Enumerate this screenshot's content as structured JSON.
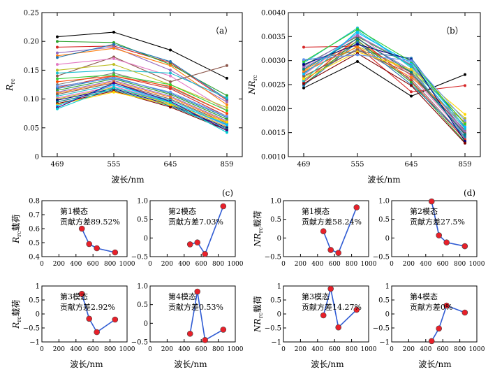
{
  "figure": {
    "panel_a_label": "（a）",
    "panel_b_label": "（b）",
    "panel_c_label": "(c)",
    "panel_d_label": "(d)",
    "xlabel_top": "波长/nm",
    "xlabel_bottom": "波长/nm"
  },
  "chart_data": [
    {
      "id": "a",
      "type": "line",
      "ylabel": "R_rc",
      "categories": [
        "469",
        "555",
        "645",
        "859"
      ],
      "ylim": [
        0,
        0.25
      ],
      "yticks": [
        "0",
        "0.05",
        "0.10",
        "0.15",
        "0.20",
        "0.25"
      ],
      "series": [
        {
          "color": "#000000",
          "values": [
            0.208,
            0.216,
            0.185,
            0.136
          ]
        },
        {
          "color": "#d62728",
          "values": [
            0.19,
            0.192,
            0.163,
            0.098
          ]
        },
        {
          "color": "#2ca02c",
          "values": [
            0.2,
            0.198,
            0.16,
            0.106
          ]
        },
        {
          "color": "#9467bd",
          "values": [
            0.18,
            0.19,
            0.15,
            0.095
          ]
        },
        {
          "color": "#ff7f0e",
          "values": [
            0.175,
            0.188,
            0.158,
            0.09
          ]
        },
        {
          "color": "#1f77b4",
          "values": [
            0.172,
            0.195,
            0.165,
            0.1
          ]
        },
        {
          "color": "#8c564b",
          "values": [
            0.14,
            0.173,
            0.13,
            0.158
          ]
        },
        {
          "color": "#e377c2",
          "values": [
            0.16,
            0.17,
            0.14,
            0.08
          ]
        },
        {
          "color": "#17becf",
          "values": [
            0.145,
            0.15,
            0.145,
            0.102
          ]
        },
        {
          "color": "#bcbd22",
          "values": [
            0.15,
            0.16,
            0.125,
            0.085
          ]
        },
        {
          "color": "#7f7f7f",
          "values": [
            0.125,
            0.145,
            0.12,
            0.075
          ]
        },
        {
          "color": "#d62728",
          "values": [
            0.12,
            0.14,
            0.118,
            0.07
          ]
        },
        {
          "color": "#1f77b4",
          "values": [
            0.118,
            0.138,
            0.11,
            0.068
          ]
        },
        {
          "color": "#2ca02c",
          "values": [
            0.115,
            0.135,
            0.108,
            0.065
          ]
        },
        {
          "color": "#9467bd",
          "values": [
            0.112,
            0.132,
            0.105,
            0.062
          ]
        },
        {
          "color": "#ff7f0e",
          "values": [
            0.11,
            0.13,
            0.103,
            0.06
          ]
        },
        {
          "color": "#8c564b",
          "values": [
            0.108,
            0.128,
            0.1,
            0.058
          ]
        },
        {
          "color": "#17becf",
          "values": [
            0.105,
            0.125,
            0.098,
            0.056
          ]
        },
        {
          "color": "#e377c2",
          "values": [
            0.102,
            0.122,
            0.095,
            0.054
          ]
        },
        {
          "color": "#bcbd22",
          "values": [
            0.1,
            0.12,
            0.092,
            0.052
          ]
        },
        {
          "color": "#000080",
          "values": [
            0.098,
            0.118,
            0.09,
            0.05
          ]
        },
        {
          "color": "#008080",
          "values": [
            0.095,
            0.116,
            0.088,
            0.048
          ]
        },
        {
          "color": "#800000",
          "values": [
            0.092,
            0.114,
            0.086,
            0.046
          ]
        },
        {
          "color": "#ffd700",
          "values": [
            0.09,
            0.112,
            0.09,
            0.06
          ]
        },
        {
          "color": "#00bfff",
          "values": [
            0.088,
            0.125,
            0.095,
            0.055
          ]
        },
        {
          "color": "#4b0082",
          "values": [
            0.085,
            0.128,
            0.096,
            0.045
          ]
        },
        {
          "color": "#00ced1",
          "values": [
            0.083,
            0.12,
            0.094,
            0.042
          ]
        },
        {
          "color": "#ff4500",
          "values": [
            0.13,
            0.14,
            0.122,
            0.075
          ]
        },
        {
          "color": "#32cd32",
          "values": [
            0.135,
            0.142,
            0.125,
            0.08
          ]
        },
        {
          "color": "#6495ed",
          "values": [
            0.122,
            0.136,
            0.112,
            0.07
          ]
        }
      ]
    },
    {
      "id": "b",
      "type": "line",
      "ylabel": "NR_rc",
      "categories": [
        "469",
        "555",
        "645",
        "859"
      ],
      "ylim": [
        0.001,
        0.004
      ],
      "yticks": [
        "0.0010",
        "0.0015",
        "0.0020",
        "0.0025",
        "0.0030",
        "0.0035",
        "0.0040"
      ],
      "series": [
        {
          "color": "#000000",
          "values": [
            0.00243,
            0.00298,
            0.00226,
            0.00271
          ]
        },
        {
          "color": "#d62728",
          "values": [
            0.00328,
            0.0033,
            0.00235,
            0.00248
          ]
        },
        {
          "color": "#2ca02c",
          "values": [
            0.0029,
            0.0035,
            0.0029,
            0.0017
          ]
        },
        {
          "color": "#1f77b4",
          "values": [
            0.003,
            0.0032,
            0.00305,
            0.0016
          ]
        },
        {
          "color": "#9467bd",
          "values": [
            0.00285,
            0.00345,
            0.0028,
            0.0015
          ]
        },
        {
          "color": "#ff7f0e",
          "values": [
            0.0028,
            0.0034,
            0.0027,
            0.00165
          ]
        },
        {
          "color": "#17becf",
          "values": [
            0.00295,
            0.00368,
            0.00285,
            0.0014
          ]
        },
        {
          "color": "#8c564b",
          "values": [
            0.00275,
            0.00335,
            0.00275,
            0.00155
          ]
        },
        {
          "color": "#e377c2",
          "values": [
            0.0027,
            0.00355,
            0.00268,
            0.00145
          ]
        },
        {
          "color": "#bcbd22",
          "values": [
            0.00265,
            0.0033,
            0.00278,
            0.0018
          ]
        },
        {
          "color": "#7f7f7f",
          "values": [
            0.0026,
            0.00325,
            0.00262,
            0.00138
          ]
        },
        {
          "color": "#d62728",
          "values": [
            0.00255,
            0.00348,
            0.00258,
            0.00135
          ]
        },
        {
          "color": "#2ca02c",
          "values": [
            0.0025,
            0.00342,
            0.00255,
            0.0013
          ]
        },
        {
          "color": "#1f77b4",
          "values": [
            0.00248,
            0.00338,
            0.0025,
            0.00142
          ]
        },
        {
          "color": "#9467bd",
          "values": [
            0.00288,
            0.00352,
            0.00292,
            0.00152
          ]
        },
        {
          "color": "#ff7f0e",
          "values": [
            0.00278,
            0.00328,
            0.00265,
            0.00172
          ]
        },
        {
          "color": "#8c564b",
          "values": [
            0.00268,
            0.00322,
            0.00272,
            0.00148
          ]
        },
        {
          "color": "#17becf",
          "values": [
            0.00258,
            0.00362,
            0.00288,
            0.00158
          ]
        },
        {
          "color": "#ffd700",
          "values": [
            0.00262,
            0.00318,
            0.00282,
            0.00188
          ]
        },
        {
          "color": "#00bfff",
          "values": [
            0.00272,
            0.00358,
            0.00295,
            0.00162
          ]
        },
        {
          "color": "#000080",
          "values": [
            0.00292,
            0.00334,
            0.00302,
            0.00132
          ]
        },
        {
          "color": "#008080",
          "values": [
            0.00282,
            0.00346,
            0.00276,
            0.00146
          ]
        },
        {
          "color": "#800000",
          "values": [
            0.00252,
            0.00315,
            0.00248,
            0.00128
          ]
        },
        {
          "color": "#32cd32",
          "values": [
            0.00298,
            0.00365,
            0.00298,
            0.00168
          ]
        },
        {
          "color": "#6495ed",
          "values": [
            0.00302,
            0.00312,
            0.003,
            0.00175
          ]
        }
      ]
    },
    {
      "id": "c1",
      "type": "line",
      "ylabel": "R_rc载荷",
      "annotation": [
        "第1模态",
        "贡献方差89.52%"
      ],
      "xlim": [
        0,
        1000
      ],
      "xticks": [
        "0",
        "200",
        "400",
        "600",
        "800",
        "1000"
      ],
      "ylim": [
        0.4,
        0.8
      ],
      "yticks": [
        "0.4",
        "0.5",
        "0.6",
        "0.7",
        "0.8"
      ],
      "x": [
        469,
        555,
        645,
        859
      ],
      "y": [
        0.6,
        0.49,
        0.46,
        0.43
      ]
    },
    {
      "id": "c2",
      "type": "line",
      "annotation": [
        "第2模态",
        "贡献方差7.03%"
      ],
      "xlim": [
        0,
        1000
      ],
      "xticks": [
        "0",
        "200",
        "400",
        "600",
        "800",
        "1000"
      ],
      "ylim": [
        -0.5,
        1.0
      ],
      "yticks": [
        "−0.5",
        "0",
        "0.5",
        "1.0"
      ],
      "x": [
        469,
        555,
        645,
        859
      ],
      "y": [
        -0.17,
        -0.12,
        -0.43,
        0.85
      ]
    },
    {
      "id": "c3",
      "type": "line",
      "ylabel": "R_rc载荷",
      "annotation": [
        "第3模态",
        "贡献方差2.92%"
      ],
      "xlim": [
        0,
        1000
      ],
      "xticks": [
        "0",
        "200",
        "400",
        "600",
        "800",
        "1000"
      ],
      "ylim": [
        -1,
        1
      ],
      "yticks": [
        "−1",
        "−0.5",
        "0",
        "0.5",
        "1"
      ],
      "x": [
        469,
        555,
        645,
        859
      ],
      "y": [
        0.72,
        -0.17,
        -0.65,
        -0.2
      ]
    },
    {
      "id": "c4",
      "type": "line",
      "annotation": [
        "第4模态",
        "贡献方差0.53%"
      ],
      "xlim": [
        0,
        1000
      ],
      "xticks": [
        "0",
        "200",
        "400",
        "600",
        "800",
        "1000"
      ],
      "ylim": [
        -0.5,
        1.0
      ],
      "yticks": [
        "−0.5",
        "0",
        "0.5",
        "1.0"
      ],
      "x": [
        469,
        555,
        645,
        859
      ],
      "y": [
        -0.28,
        0.85,
        -0.45,
        -0.17
      ]
    },
    {
      "id": "d1",
      "type": "line",
      "ylabel": "NR_rc载荷",
      "annotation": [
        "第1模态",
        "贡献方差58.24%"
      ],
      "xlim": [
        0,
        1000
      ],
      "xticks": [
        "0",
        "200",
        "400",
        "600",
        "800",
        "1000"
      ],
      "ylim": [
        -0.5,
        1.0
      ],
      "yticks": [
        "−0.5",
        "0",
        "0.5",
        "1.0"
      ],
      "x": [
        469,
        555,
        645,
        859
      ],
      "y": [
        0.18,
        -0.32,
        -0.4,
        0.82
      ]
    },
    {
      "id": "d2",
      "type": "line",
      "annotation": [
        "第2模态",
        "贡献方差27.5%"
      ],
      "xlim": [
        0,
        1000
      ],
      "xticks": [
        "0",
        "200",
        "400",
        "600",
        "800",
        "1000"
      ],
      "ylim": [
        -0.5,
        1.0
      ],
      "yticks": [
        "−0.5",
        "0",
        "0.5",
        "1.0"
      ],
      "x": [
        469,
        555,
        645,
        859
      ],
      "y": [
        0.98,
        0.07,
        -0.12,
        -0.22
      ]
    },
    {
      "id": "d3",
      "type": "line",
      "ylabel": "NR_rc载荷",
      "annotation": [
        "第3模态",
        "贡献方差14.27%"
      ],
      "xlim": [
        0,
        1000
      ],
      "xticks": [
        "0",
        "200",
        "400",
        "600",
        "800",
        "1000"
      ],
      "ylim": [
        -1,
        1
      ],
      "yticks": [
        "−1",
        "−0.5",
        "0",
        "0.5",
        "1"
      ],
      "x": [
        469,
        555,
        645,
        859
      ],
      "y": [
        -0.05,
        0.9,
        -0.48,
        0.15
      ]
    },
    {
      "id": "d4",
      "type": "line",
      "annotation": [
        "第4模态",
        "贡献方差0%"
      ],
      "xlim": [
        0,
        1000
      ],
      "xticks": [
        "0",
        "200",
        "400",
        "600",
        "800",
        "1000"
      ],
      "ylim": [
        -1,
        1
      ],
      "yticks": [
        "−1",
        "−0.5",
        "0",
        "0.5",
        "1"
      ],
      "x": [
        469,
        555,
        645,
        859
      ],
      "y": [
        -0.97,
        -0.52,
        0.3,
        0.05
      ]
    }
  ]
}
